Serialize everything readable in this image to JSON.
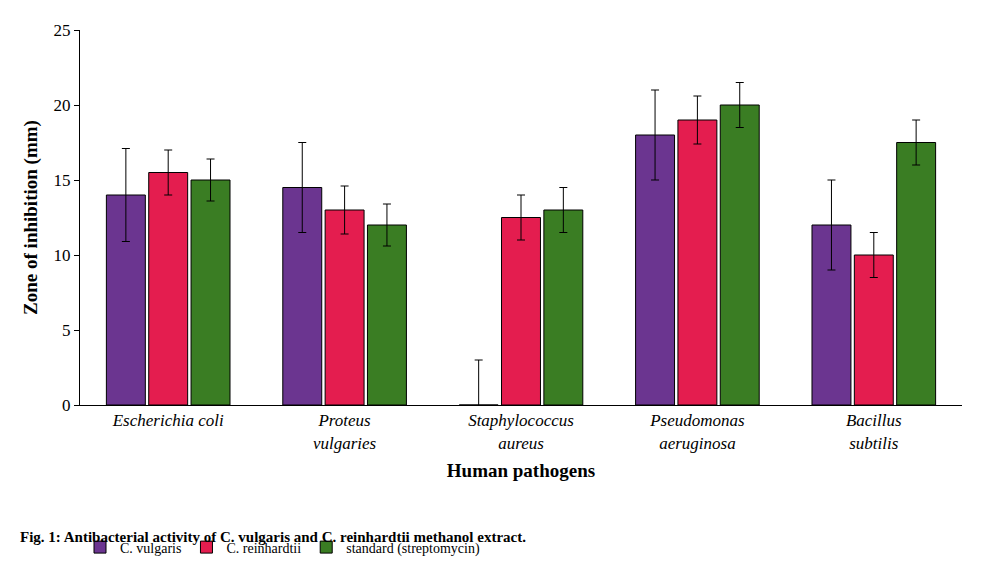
{
  "chart_data": {
    "type": "bar",
    "title": "Fig. 1: Antibacterial activity of C. vulgaris and C. reinhardtii methanol extract.",
    "x_label": "Human pathogens",
    "y_label": "Zone of inhibition (mm)",
    "categories": [
      "Escherichia coli",
      "Proteus vulgaries",
      "Staphylococcus aureus",
      "Pseudomonas aeruginosa",
      "Bacillus subtilis"
    ],
    "series": [
      {
        "name": "C. vulgaris",
        "color": "#6b3590",
        "values": [
          14,
          14.5,
          0,
          18,
          12
        ],
        "errors": [
          3.1,
          3,
          3,
          3,
          3
        ]
      },
      {
        "name": "C. reinhardtii",
        "color": "#e41d4f",
        "values": [
          15.5,
          13,
          12.5,
          19,
          10
        ],
        "errors": [
          1.5,
          1.6,
          1.5,
          1.6,
          1.5
        ]
      },
      {
        "name": "standard (streptomycin)",
        "color": "#3a7d23",
        "values": [
          15,
          12,
          13,
          20,
          17.5
        ],
        "errors": [
          1.4,
          1.4,
          1.5,
          1.5,
          1.5
        ]
      }
    ],
    "ylim": [
      0,
      25
    ],
    "yticks": [
      0,
      5,
      10,
      15,
      20,
      25
    ],
    "grid": false,
    "legend": "bottom"
  }
}
